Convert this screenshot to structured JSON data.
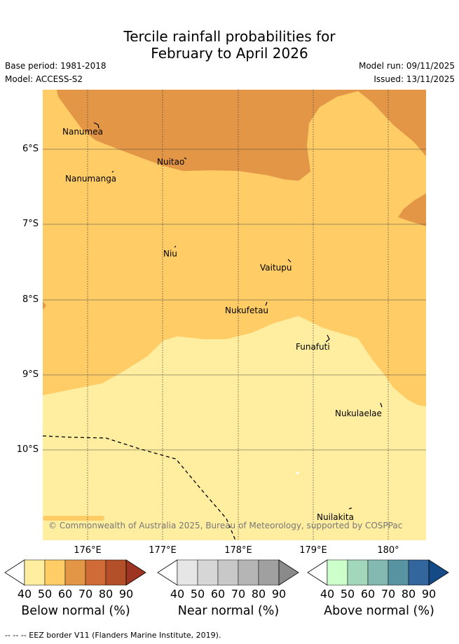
{
  "title_line1": "Tercile rainfall probabilities for",
  "title_line2": "February to April 2026",
  "base_period": "Base period: 1981-2018",
  "model": "Model: ACCESS-S2",
  "model_run": "Model run: 09/11/2025",
  "issued": "Issued: 13/11/2025",
  "lat_labels": [
    "6°S",
    "7°S",
    "8°S",
    "9°S",
    "10°S"
  ],
  "lon_labels": [
    "176°E",
    "177°E",
    "178°E",
    "179°E",
    "180°"
  ],
  "islands": [
    "Nanumea",
    "Nuitao",
    "Nanumanga",
    "Niu",
    "Vaitupu",
    "Nukufetau",
    "Funafuti",
    "Nukulaelae",
    "Nuilakita"
  ],
  "copyright": "© Commonwealth of Australia 2025, Bureau of Meteorology, supported by COSPPac",
  "colorbars": [
    {
      "title": "Below normal (%)",
      "ticks": [
        "40",
        "50",
        "60",
        "70",
        "80",
        "90"
      ],
      "colors": [
        "#ffffff",
        "#ffeea0",
        "#ffcc66",
        "#e39646",
        "#d06a36",
        "#b35029",
        "#9e3522"
      ]
    },
    {
      "title": "Near normal (%)",
      "ticks": [
        "40",
        "50",
        "60",
        "70",
        "80",
        "90"
      ],
      "colors": [
        "#ffffff",
        "#e6e6e6",
        "#d6d6d6",
        "#c8c8c8",
        "#b5b5b5",
        "#a0a0a0",
        "#8a8a8a"
      ]
    },
    {
      "title": "Above normal (%)",
      "ticks": [
        "40",
        "50",
        "60",
        "70",
        "80",
        "90"
      ],
      "colors": [
        "#ffffff",
        "#ccffcc",
        "#a2d7bc",
        "#84b9b2",
        "#5793a0",
        "#33669c",
        "#144a85"
      ]
    }
  ],
  "footer": "--  --  -- EEZ border V11 (Flanders Marine Institute, 2019)."
}
